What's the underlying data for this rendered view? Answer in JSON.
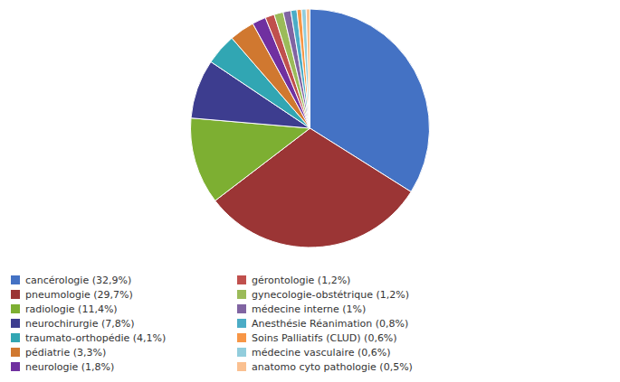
{
  "chart_data": {
    "type": "pie",
    "categories": [
      "cancérologie (32,9%)",
      "pneumologie (29,7%)",
      "radiologie (11,4%)",
      "neurochirurgie (7,8%)",
      "traumato-orthopédie (4,1%)",
      "pédiatrie (3,3%)",
      "neurologie (1,8%)",
      "gérontologie (1,2%)",
      "gynecologie-obstétrique (1,2%)",
      "médecine interne (1%)",
      "Anesthésie Réanimation (0,8%)",
      "Soins Palliatifs (CLUD) (0,6%)",
      "médecine vasculaire (0,6%)",
      "anatomo cyto pathologie (0,5%)"
    ],
    "values": [
      32.9,
      29.7,
      11.4,
      7.8,
      4.1,
      3.3,
      1.8,
      1.2,
      1.2,
      1.0,
      0.8,
      0.6,
      0.6,
      0.5
    ],
    "colors": [
      "#4472C4",
      "#9B3535",
      "#7DAF32",
      "#3D3D8F",
      "#31A6B3",
      "#D07830",
      "#7030A0",
      "#C0504D",
      "#9BBB59",
      "#8064A2",
      "#4BACC6",
      "#F79646",
      "#92CDDC",
      "#FAC090"
    ],
    "legend": "lower left"
  }
}
